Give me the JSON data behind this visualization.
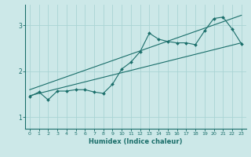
{
  "xlabel": "Humidex (Indice chaleur)",
  "bg_color": "#cce8e8",
  "grid_color": "#aad4d4",
  "line_color": "#1a6e6a",
  "xlim": [
    -0.5,
    23.5
  ],
  "ylim": [
    0.75,
    3.45
  ],
  "xticks": [
    0,
    1,
    2,
    3,
    4,
    5,
    6,
    7,
    8,
    9,
    10,
    11,
    12,
    13,
    14,
    15,
    16,
    17,
    18,
    19,
    20,
    21,
    22,
    23
  ],
  "yticks": [
    1,
    2,
    3
  ],
  "data_x": [
    0,
    1,
    2,
    3,
    4,
    5,
    6,
    7,
    8,
    9,
    10,
    11,
    12,
    13,
    14,
    15,
    16,
    17,
    18,
    19,
    20,
    21,
    22,
    23
  ],
  "data_y": [
    1.45,
    1.55,
    1.38,
    1.57,
    1.57,
    1.6,
    1.6,
    1.55,
    1.52,
    1.72,
    2.05,
    2.2,
    2.43,
    2.83,
    2.7,
    2.65,
    2.62,
    2.62,
    2.58,
    2.88,
    3.15,
    3.18,
    2.92,
    2.6
  ],
  "line1_x": [
    0,
    23
  ],
  "line1_y": [
    1.47,
    2.62
  ],
  "line2_x": [
    0,
    23
  ],
  "line2_y": [
    1.6,
    3.22
  ]
}
